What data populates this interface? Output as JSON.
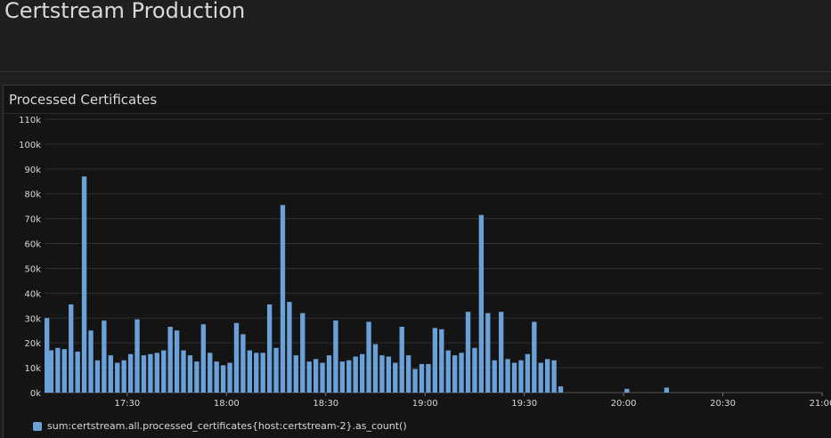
{
  "dashboard": {
    "title": "Certstream Production"
  },
  "panel": {
    "title": "Processed Certificates"
  },
  "colors": {
    "bar": "#6aa1d8",
    "grid": "#2f2f2f",
    "axis_text": "#d8d9da"
  },
  "legend": {
    "label": "sum:certstream.all.processed_certificates{host:certstream-2}.as_count()"
  },
  "chart_data": {
    "type": "bar",
    "title": "",
    "xlabel": "",
    "ylabel": "",
    "ylim": [
      0,
      110000
    ],
    "y_ticks": [
      "0k",
      "10k",
      "20k",
      "30k",
      "40k",
      "50k",
      "60k",
      "70k",
      "80k",
      "90k",
      "100k",
      "110k"
    ],
    "x_range": [
      "17:05",
      "21:00"
    ],
    "x_ticks": [
      "17:30",
      "18:00",
      "18:30",
      "19:00",
      "19:30",
      "20:00",
      "20:30",
      "21:00"
    ],
    "x": [
      "17:05",
      "17:07",
      "17:09",
      "17:11",
      "17:13",
      "17:15",
      "17:17",
      "17:19",
      "17:21",
      "17:23",
      "17:25",
      "17:27",
      "17:29",
      "17:31",
      "17:33",
      "17:35",
      "17:37",
      "17:39",
      "17:41",
      "17:43",
      "17:45",
      "17:47",
      "17:49",
      "17:51",
      "17:53",
      "17:55",
      "17:57",
      "17:59",
      "18:01",
      "18:03",
      "18:05",
      "18:07",
      "18:09",
      "18:11",
      "18:13",
      "18:15",
      "18:17",
      "18:19",
      "18:21",
      "18:23",
      "18:25",
      "18:27",
      "18:29",
      "18:31",
      "18:33",
      "18:35",
      "18:37",
      "18:39",
      "18:41",
      "18:43",
      "18:45",
      "18:47",
      "18:49",
      "18:51",
      "18:53",
      "18:55",
      "18:57",
      "18:59",
      "19:01",
      "19:03",
      "19:05",
      "19:07",
      "19:09",
      "19:11",
      "19:13",
      "19:15",
      "19:17",
      "19:19",
      "19:21",
      "19:23",
      "19:25",
      "19:27",
      "19:29",
      "19:31",
      "19:33",
      "19:35",
      "19:37",
      "19:39",
      "19:41",
      "20:01",
      "20:13"
    ],
    "series": [
      {
        "values": [
          30000,
          17000,
          18000,
          17500,
          35500,
          16500,
          87000,
          25000,
          13000,
          29000,
          15000,
          12000,
          13000,
          15500,
          29500,
          15000,
          15500,
          16000,
          17000,
          26500,
          25000,
          17000,
          15000,
          12500,
          27500,
          16000,
          12500,
          11000,
          12000,
          28000,
          23500,
          17000,
          16000,
          16000,
          35500,
          18000,
          75500,
          36500,
          15000,
          32000,
          12500,
          13500,
          12000,
          15000,
          29000,
          12500,
          13000,
          14500,
          15500,
          28500,
          19500,
          15000,
          14500,
          12000,
          26500,
          15000,
          9500,
          11500,
          11500,
          26000,
          25500,
          17000,
          15000,
          16000,
          32500,
          18000,
          71500,
          32000,
          13000,
          32500,
          13500,
          12000,
          13000,
          15500,
          28500,
          12000,
          13500,
          13000,
          2500,
          1500,
          2000
        ]
      }
    ]
  }
}
